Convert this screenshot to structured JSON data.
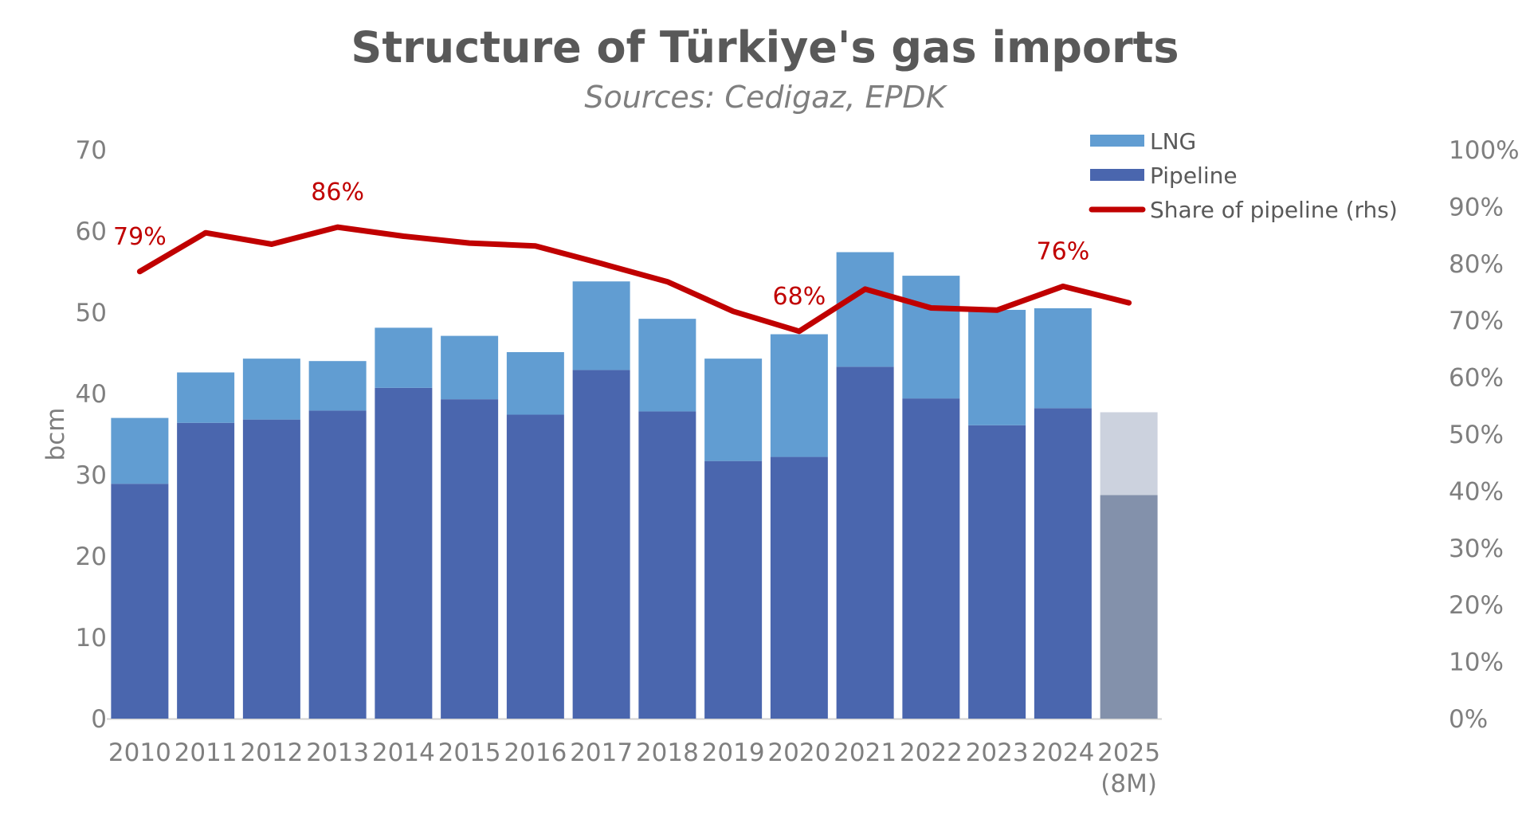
{
  "chart_data": {
    "type": "bar",
    "title": "Structure of Türkiye's gas imports",
    "subtitle": "Sources: Cedigaz, EPDK",
    "ylabel": "bcm",
    "ylim": [
      0,
      70
    ],
    "y2lim": [
      0,
      1
    ],
    "yticks": [
      "0",
      "10",
      "20",
      "30",
      "40",
      "50",
      "60",
      "70"
    ],
    "y2ticks": [
      "0%",
      "10%",
      "20%",
      "30%",
      "40%",
      "50%",
      "60%",
      "70%",
      "80%",
      "90%",
      "100%"
    ],
    "stacked": true,
    "categories": [
      "2010",
      "2011",
      "2012",
      "2013",
      "2014",
      "2015",
      "2016",
      "2017",
      "2018",
      "2019",
      "2020",
      "2021",
      "2022",
      "2023",
      "2024",
      "2025\n(8M)"
    ],
    "series": [
      {
        "name": "Pipeline",
        "kind": "bar",
        "color": "#4a66ae",
        "values": [
          28.9,
          36.4,
          36.8,
          37.9,
          40.7,
          39.3,
          37.4,
          42.9,
          37.8,
          31.7,
          32.2,
          43.3,
          39.4,
          36.1,
          38.2,
          27.5
        ]
      },
      {
        "name": "LNG",
        "kind": "bar",
        "color": "#619dd2",
        "values": [
          8.1,
          6.2,
          7.5,
          6.1,
          7.4,
          7.8,
          7.7,
          10.9,
          11.4,
          12.6,
          15.1,
          14.1,
          15.1,
          14.2,
          12.3,
          10.2
        ]
      },
      {
        "name": "Share of pipeline (rhs)",
        "kind": "line",
        "color": "#c00000",
        "values": [
          0.786,
          0.854,
          0.834,
          0.864,
          0.848,
          0.836,
          0.831,
          0.8,
          0.768,
          0.716,
          0.681,
          0.755,
          0.722,
          0.718,
          0.76,
          0.731
        ]
      }
    ],
    "last_bar_colors": {
      "Pipeline": "#8391ab",
      "LNG": "#ccd2de"
    },
    "annotations": [
      {
        "index": 0,
        "text": "79%"
      },
      {
        "index": 3,
        "text": "86%"
      },
      {
        "index": 10,
        "text": "68%"
      },
      {
        "index": 14,
        "text": "76%"
      }
    ],
    "legend": {
      "position": "top-right",
      "items": [
        {
          "label": "LNG",
          "color": "#619dd2",
          "kind": "bar"
        },
        {
          "label": "Pipeline",
          "color": "#4a66ae",
          "kind": "bar"
        },
        {
          "label": "Share of pipeline (rhs)",
          "color": "#c00000",
          "kind": "line"
        }
      ]
    },
    "grid": false
  }
}
